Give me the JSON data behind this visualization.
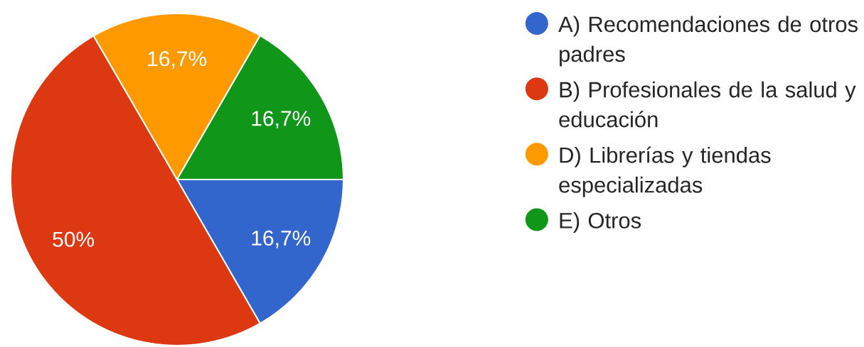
{
  "chart_data": {
    "type": "pie",
    "categories": [
      "A) Recomendaciones de otros padres",
      "B) Profesionales de la salud y educación",
      "D) Librerías y tiendas especializadas",
      "E) Otros"
    ],
    "values": [
      16.7,
      50,
      16.7,
      16.7
    ],
    "colors": [
      "#3366cc",
      "#dc3912",
      "#ff9900",
      "#109618"
    ],
    "value_labels": [
      "16,7%",
      "50%",
      "16,7%",
      "16,7%"
    ],
    "legend": "right"
  }
}
